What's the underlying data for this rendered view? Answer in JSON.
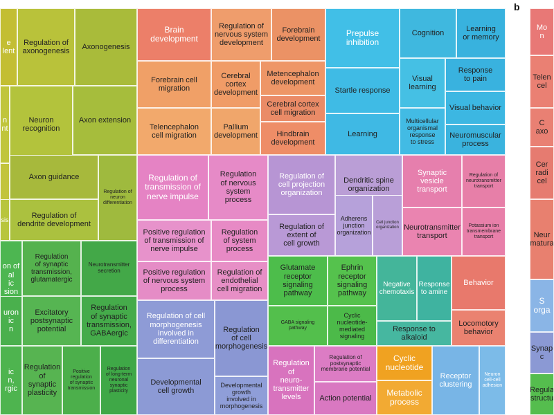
{
  "panel_labels": {
    "a": "",
    "b": "b"
  },
  "colors": {
    "yellow_green": "#b0be3c",
    "olive": "#9cb23c",
    "green": "#4fae4f",
    "orange": "#ee9c6c",
    "salmon": "#e87c6c",
    "pink_magenta": "#e685c2",
    "violet": "#b79ad0",
    "blue": "#8a9ad4",
    "cyan": "#40bde3",
    "teal": "#45b6a6",
    "lime_green": "#4fc24a",
    "amber": "#f3a52a",
    "magenta": "#d76fbc",
    "light_blue": "#7fb8e4"
  },
  "chart_data": {
    "type": "treemap",
    "title": "",
    "tiles": [
      {
        "label": "e\nlent",
        "color": "#c3be33"
      },
      {
        "label": "Regulation of\naxonogenesis",
        "color": "#b9c23a"
      },
      {
        "label": "Axonogenesis",
        "color": "#a9bb3a"
      },
      {
        "label": "n\nnt",
        "color": "#c0c53b"
      },
      {
        "label": "Neuron\nrecognition",
        "color": "#b3c33c"
      },
      {
        "label": "Axon extension",
        "color": "#a6bd3c"
      },
      {
        "label": "",
        "color": "#c2c43c"
      },
      {
        "label": "Axon guidance",
        "color": "#a7b93c"
      },
      {
        "label": "Regulation of\nneuron\ndifferentiation",
        "color": "#9fba3e"
      },
      {
        "label": "sis",
        "color": "#b8c53d"
      },
      {
        "label": "Regulation of\ndendrite development",
        "color": "#abc13f"
      },
      {
        "label": "on of\nal\nic\nsion",
        "color": "#4db651"
      },
      {
        "label": "Regulation\nof synaptic\ntransmission,\nglutamatergic",
        "color": "#55b24e"
      },
      {
        "label": "Neurotransmitter\nsecretion",
        "color": "#43a848"
      },
      {
        "label": "uron\nic\nn",
        "color": "#4ab04d"
      },
      {
        "label": "Excitatory\npostsynaptic\npotential",
        "color": "#56b552"
      },
      {
        "label": "Regulation\nof synaptic\ntransmission,\nGABAergic",
        "color": "#45ab4a"
      },
      {
        "label": "ic\nn,\nrgic",
        "color": "#4eb44f"
      },
      {
        "label": "Regulation\nof\nsynaptic\nplasticity",
        "color": "#57b451"
      },
      {
        "label": "Positive\nregulation\nof synaptic\ntransmission",
        "color": "#4caf4b"
      },
      {
        "label": "Regulation\nof long-term\nneuronal\nsynaptic\nplasticity",
        "color": "#3fa847"
      },
      {
        "label": "Brain\ndevelopment",
        "color": "#ec7f69"
      },
      {
        "label": "Regulation of\nnervous system\ndevelopment",
        "color": "#ef9d6c"
      },
      {
        "label": "Forebrain\ndevelopment",
        "color": "#eb9265"
      },
      {
        "label": "Forebrain cell\nmigration",
        "color": "#f0a067"
      },
      {
        "label": "Cerebral\ncortex\ndevelopment",
        "color": "#f09c67"
      },
      {
        "label": "Metencephalon\ndevelopment",
        "color": "#ee9667"
      },
      {
        "label": "Cerebral cortex\ncell migration",
        "color": "#ea8b67"
      },
      {
        "label": "Telencephalon\ncell migration",
        "color": "#f2a96c"
      },
      {
        "label": "Pallium\ndevelopment",
        "color": "#f0a66b"
      },
      {
        "label": "Hindbrain\ndevelopment",
        "color": "#ee8d67"
      },
      {
        "label": "Prepulse\ninhibition",
        "color": "#41bfe7"
      },
      {
        "label": "Cognition",
        "color": "#3fb8df"
      },
      {
        "label": "Learning\nor memory",
        "color": "#38b2de"
      },
      {
        "label": "Startle response",
        "color": "#3fbbe5"
      },
      {
        "label": "Visual\nlearning",
        "color": "#45c0e4"
      },
      {
        "label": "Response\nto pain",
        "color": "#39b2df"
      },
      {
        "label": "Visual behavior",
        "color": "#3cb7e2"
      },
      {
        "label": "Learning",
        "color": "#3fb9e4"
      },
      {
        "label": "Multicellular\norganismal\nresponse\nto stress",
        "color": "#42bbe4"
      },
      {
        "label": "Neuromuscular\nprocess",
        "color": "#3ab3de"
      },
      {
        "label": "Regulation of\ntransmission of\nnerve impulse",
        "color": "#e583c4"
      },
      {
        "label": "Regulation\nof nervous\nsystem\nprocess",
        "color": "#e68ac7"
      },
      {
        "label": "Positive regulation\nof transmission of\nnerve impulse",
        "color": "#e792cb"
      },
      {
        "label": "Regulation\nof system\nprocess",
        "color": "#e78ac5"
      },
      {
        "label": "Positive regulation\nof nervous system\nprocess",
        "color": "#e58cc6"
      },
      {
        "label": "Regulation of\nendothelial\ncell migration",
        "color": "#e78fc6"
      },
      {
        "label": "Regulation of\ncell projection\norganization",
        "color": "#b795d4"
      },
      {
        "label": "Dendritic spine\norganization",
        "color": "#ba9ed6"
      },
      {
        "label": "Regulation of\nextent of\ncell growth",
        "color": "#b999d6"
      },
      {
        "label": "Adherens\njunction\norganization",
        "color": "#b6a1da"
      },
      {
        "label": "Cell junction\norganization",
        "color": "#b99fd8"
      },
      {
        "label": "Synaptic\nvesicle\ntransport",
        "color": "#e67fad"
      },
      {
        "label": "Regulation of\nneurotransmitter\ntransport",
        "color": "#e77fa8"
      },
      {
        "label": "Neurotransmitter\ntransport",
        "color": "#ea84b0"
      },
      {
        "label": "Potassium ion\ntransmembrane\ntransport",
        "color": "#e87fa9"
      },
      {
        "label": "Regulation of cell\nmorphogenesis\ninvolved in\ndifferentiation",
        "color": "#8e9bd6"
      },
      {
        "label": "Regulation\nof cell\nmorphogenesis",
        "color": "#8a97d3"
      },
      {
        "label": "Developmental\ncell growth",
        "color": "#8c9ad5"
      },
      {
        "label": "Developmental\ngrowth\ninvolved in\nmorphogenesis",
        "color": "#8f9ed8"
      },
      {
        "label": "Glutamate\nreceptor\nsignaling\npathway",
        "color": "#4dbd4b"
      },
      {
        "label": "Ephrin\nreceptor\nsignaling\npathway",
        "color": "#55c24d"
      },
      {
        "label": "GABA signaling\npathway",
        "color": "#53bf4c"
      },
      {
        "label": "Cyclic\nnucleotide-\nmediated\nsignaling",
        "color": "#4cba49"
      },
      {
        "label": "Negative\nchemotaxis",
        "color": "#44b59a"
      },
      {
        "label": "Response\nto amine",
        "color": "#3fb3a0"
      },
      {
        "label": "Response to\nalkaloid",
        "color": "#46b7a0"
      },
      {
        "label": "Behavior",
        "color": "#e8796c"
      },
      {
        "label": "Locomotory\nbehavior",
        "color": "#ea8270"
      },
      {
        "label": "Regulation\nof\nneuro-\ntransmitter\nlevels",
        "color": "#d873be"
      },
      {
        "label": "Regulation of\npostsynaptic\nmembrane potential",
        "color": "#dc7cc4"
      },
      {
        "label": "Action potential",
        "color": "#d978c1"
      },
      {
        "label": "Cyclic\nnucleotide",
        "color": "#f0a221"
      },
      {
        "label": "Metabolic\nprocess",
        "color": "#f2aa33"
      },
      {
        "label": "Receptor\nclustering",
        "color": "#78b5e6"
      },
      {
        "label": "Neuron\ncell-cell\nadhesion",
        "color": "#7cbbe8"
      },
      {
        "label": "Mo\nn",
        "color": "#e87876"
      },
      {
        "label": "Telen\ncel",
        "color": "#ea8073"
      },
      {
        "label": "C\naxo",
        "color": "#e98073"
      },
      {
        "label": "Cer\nradi\ncel",
        "color": "#e67b70"
      },
      {
        "label": "Neur\nmatura",
        "color": "#e8806f"
      },
      {
        "label": "S\norga",
        "color": "#8ab5e6"
      },
      {
        "label": "Synap\nc",
        "color": "#8b99d4"
      },
      {
        "label": "Regula\nstructu",
        "color": "#55bd4e"
      }
    ]
  }
}
